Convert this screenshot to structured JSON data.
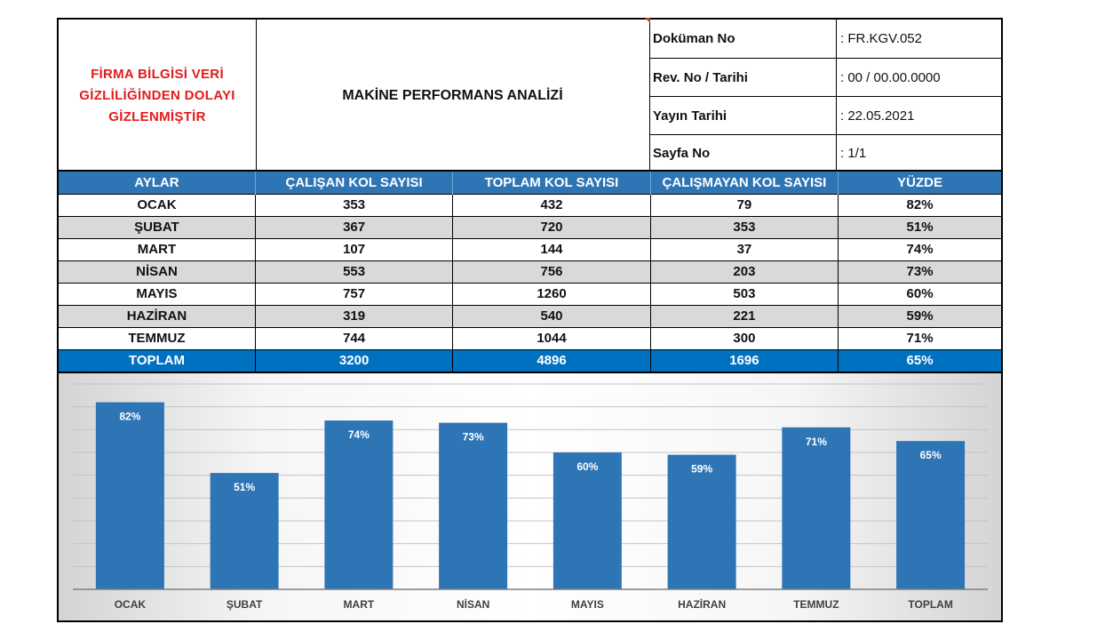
{
  "header": {
    "company_notice_lines": [
      "FİRMA  BİLGİSİ  VERİ",
      "GİZLİLİĞİNDEN DOLAYI",
      "GİZLENMİŞTİR"
    ],
    "title": "MAKİNE PERFORMANS ANALİZİ",
    "meta": [
      {
        "key": "Doküman No",
        "value": ": FR.KGV.052"
      },
      {
        "key": "Rev. No / Tarihi",
        "value": ": 00 / 00.00.0000"
      },
      {
        "key": "Yayın Tarihi",
        "value": ": 22.05.2021"
      },
      {
        "key": "Sayfa No",
        "value": ": 1/1"
      }
    ]
  },
  "table": {
    "columns": [
      "AYLAR",
      "ÇALIŞAN KOL SAYISI",
      "TOPLAM KOL SAYISI",
      "ÇALIŞMAYAN KOL SAYISI",
      "YÜZDE"
    ],
    "rows": [
      [
        "OCAK",
        "353",
        "432",
        "79",
        "82%"
      ],
      [
        "ŞUBAT",
        "367",
        "720",
        "353",
        "51%"
      ],
      [
        "MART",
        "107",
        "144",
        "37",
        "74%"
      ],
      [
        "NİSAN",
        "553",
        "756",
        "203",
        "73%"
      ],
      [
        "MAYIS",
        "757",
        "1260",
        "503",
        "60%"
      ],
      [
        "HAZİRAN",
        "319",
        "540",
        "221",
        "59%"
      ],
      [
        "TEMMUZ",
        "744",
        "1044",
        "300",
        "71%"
      ]
    ],
    "total": [
      "TOPLAM",
      "3200",
      "4896",
      "1696",
      "65%"
    ]
  },
  "colors": {
    "header_blue": "#2e75b6",
    "total_blue": "#0070c0",
    "bar_blue": "#2e75b6",
    "notice_red": "#e31b1b",
    "row_alt_gray": "#d9d9d9"
  },
  "chart_data": {
    "type": "bar",
    "categories": [
      "OCAK",
      "ŞUBAT",
      "MART",
      "NİSAN",
      "MAYIS",
      "HAZİRAN",
      "TEMMUZ",
      "TOPLAM"
    ],
    "values": [
      82,
      51,
      74,
      73,
      60,
      59,
      71,
      65
    ],
    "data_labels": [
      "82%",
      "51%",
      "74%",
      "73%",
      "60%",
      "59%",
      "71%",
      "65%"
    ],
    "title": "",
    "xlabel": "",
    "ylabel": "",
    "ylim": [
      0,
      90
    ],
    "grid": true,
    "legend": "none"
  }
}
